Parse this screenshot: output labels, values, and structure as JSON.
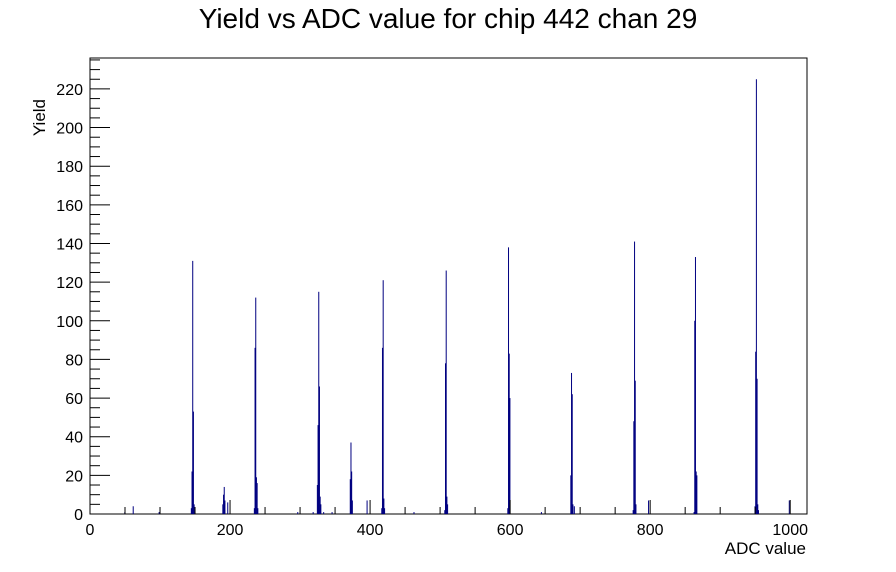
{
  "chart_data": {
    "type": "bar",
    "title": "Yield vs ADC value for chip 442 chan 29",
    "xlabel": "ADC value",
    "ylabel": "Yield",
    "xlim": [
      0,
      1024
    ],
    "ylim": [
      0,
      236
    ],
    "x_ticks": [
      0,
      200,
      400,
      600,
      800,
      1000
    ],
    "y_ticks": [
      0,
      20,
      40,
      60,
      80,
      100,
      120,
      140,
      160,
      180,
      200,
      220
    ],
    "grid": false,
    "legend": "none",
    "color": "#000080",
    "bins": [
      {
        "x": 49,
        "y": 1
      },
      {
        "x": 61,
        "y": 4
      },
      {
        "x": 98,
        "y": 1
      },
      {
        "x": 144,
        "y": 3
      },
      {
        "x": 145,
        "y": 22
      },
      {
        "x": 146,
        "y": 131
      },
      {
        "x": 147,
        "y": 53
      },
      {
        "x": 148,
        "y": 5
      },
      {
        "x": 189,
        "y": 5
      },
      {
        "x": 190,
        "y": 10
      },
      {
        "x": 191,
        "y": 14
      },
      {
        "x": 192,
        "y": 7
      },
      {
        "x": 196,
        "y": 6
      },
      {
        "x": 234,
        "y": 3
      },
      {
        "x": 235,
        "y": 86
      },
      {
        "x": 236,
        "y": 112
      },
      {
        "x": 237,
        "y": 19
      },
      {
        "x": 238,
        "y": 16
      },
      {
        "x": 239,
        "y": 3
      },
      {
        "x": 296,
        "y": 1
      },
      {
        "x": 318,
        "y": 1
      },
      {
        "x": 324,
        "y": 15
      },
      {
        "x": 325,
        "y": 46
      },
      {
        "x": 326,
        "y": 115
      },
      {
        "x": 327,
        "y": 66
      },
      {
        "x": 328,
        "y": 9
      },
      {
        "x": 329,
        "y": 5
      },
      {
        "x": 333,
        "y": 1
      },
      {
        "x": 345,
        "y": 1
      },
      {
        "x": 371,
        "y": 18
      },
      {
        "x": 372,
        "y": 37
      },
      {
        "x": 373,
        "y": 22
      },
      {
        "x": 374,
        "y": 7
      },
      {
        "x": 395,
        "y": 7
      },
      {
        "x": 416,
        "y": 3
      },
      {
        "x": 417,
        "y": 86
      },
      {
        "x": 418,
        "y": 121
      },
      {
        "x": 419,
        "y": 8
      },
      {
        "x": 420,
        "y": 3
      },
      {
        "x": 462,
        "y": 1
      },
      {
        "x": 506,
        "y": 2
      },
      {
        "x": 507,
        "y": 78
      },
      {
        "x": 508,
        "y": 126
      },
      {
        "x": 509,
        "y": 9
      },
      {
        "x": 510,
        "y": 5
      },
      {
        "x": 596,
        "y": 3
      },
      {
        "x": 597,
        "y": 138
      },
      {
        "x": 598,
        "y": 83
      },
      {
        "x": 599,
        "y": 60
      },
      {
        "x": 644,
        "y": 1
      },
      {
        "x": 686,
        "y": 20
      },
      {
        "x": 687,
        "y": 73
      },
      {
        "x": 688,
        "y": 62
      },
      {
        "x": 689,
        "y": 5
      },
      {
        "x": 691,
        "y": 4
      },
      {
        "x": 775,
        "y": 2
      },
      {
        "x": 776,
        "y": 48
      },
      {
        "x": 777,
        "y": 141
      },
      {
        "x": 778,
        "y": 69
      },
      {
        "x": 779,
        "y": 5
      },
      {
        "x": 797,
        "y": 7
      },
      {
        "x": 862,
        "y": 1
      },
      {
        "x": 863,
        "y": 100
      },
      {
        "x": 864,
        "y": 133
      },
      {
        "x": 865,
        "y": 22
      },
      {
        "x": 866,
        "y": 20
      },
      {
        "x": 949,
        "y": 4
      },
      {
        "x": 950,
        "y": 84
      },
      {
        "x": 951,
        "y": 225
      },
      {
        "x": 952,
        "y": 70
      },
      {
        "x": 953,
        "y": 5
      },
      {
        "x": 954,
        "y": 2
      },
      {
        "x": 998,
        "y": 7
      }
    ]
  }
}
